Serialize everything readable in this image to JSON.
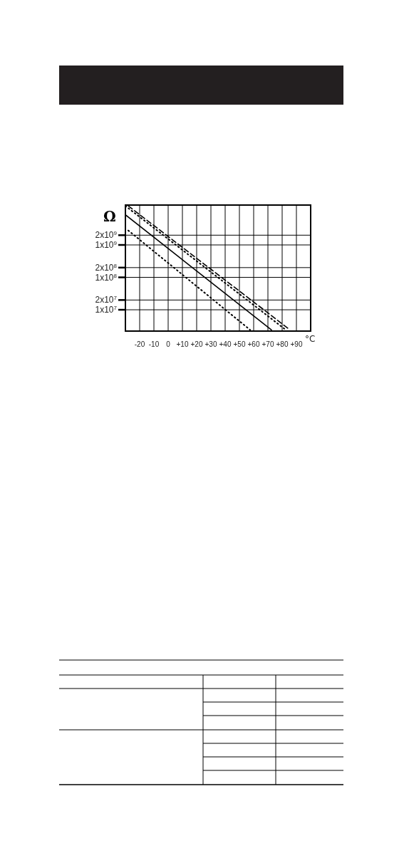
{
  "chart_data": {
    "type": "line",
    "ylabel": "Ω",
    "xlabel": "°C",
    "series": [
      {
        "color": "#000000",
        "line_style": "dotted",
        "x": [
          -28,
          57.5
        ],
        "values": [
          2800000000.0,
          2400000.0
        ]
      },
      {
        "color": "#000000",
        "line_style": "solid",
        "x": [
          -30,
          72.5
        ],
        "values": [
          8500000000.0,
          2400000.0
        ]
      },
      {
        "color": "#000000",
        "line_style": "dotted",
        "x": [
          -30,
          82
        ],
        "values": [
          16000000000.0,
          2500000.0
        ]
      },
      {
        "color": "#000000",
        "line_style": "dashed",
        "x": [
          -28,
          85
        ],
        "values": [
          16000000000.0,
          2500000.0
        ]
      }
    ],
    "log": true,
    "xlim": [
      -30,
      100
    ],
    "ylim": [
      2200000.0,
      17000000000.0
    ],
    "xticks": [
      -20,
      -10,
      0,
      {
        "value": 10,
        "label": "+10"
      },
      {
        "value": 20,
        "label": "+20"
      },
      {
        "value": 30,
        "label": "+30"
      },
      {
        "value": 40,
        "label": "+40"
      },
      {
        "value": 50,
        "label": "+50"
      },
      {
        "value": 60,
        "label": "+60"
      },
      {
        "value": 70,
        "label": "+70"
      },
      {
        "value": 80,
        "label": "+80"
      },
      {
        "value": 90,
        "label": "+90"
      }
    ],
    "yticks": [
      {
        "value": 10000000.0,
        "label": "1x10$^{7}$"
      },
      {
        "value": 20000000.0,
        "label": "2x10$^{7}$"
      },
      {
        "value": 100000000.0,
        "label": "1x10$^{8}$"
      },
      {
        "value": 200000000.0,
        "label": "2x10$^{8}$"
      },
      {
        "value": 1000000000.0,
        "label": "1x10$^{9}$"
      },
      {
        "value": 2000000000.0,
        "label": "2x10$^{9}$"
      }
    ],
    "grid": true,
    "legend": false,
    "marker": "none"
  }
}
